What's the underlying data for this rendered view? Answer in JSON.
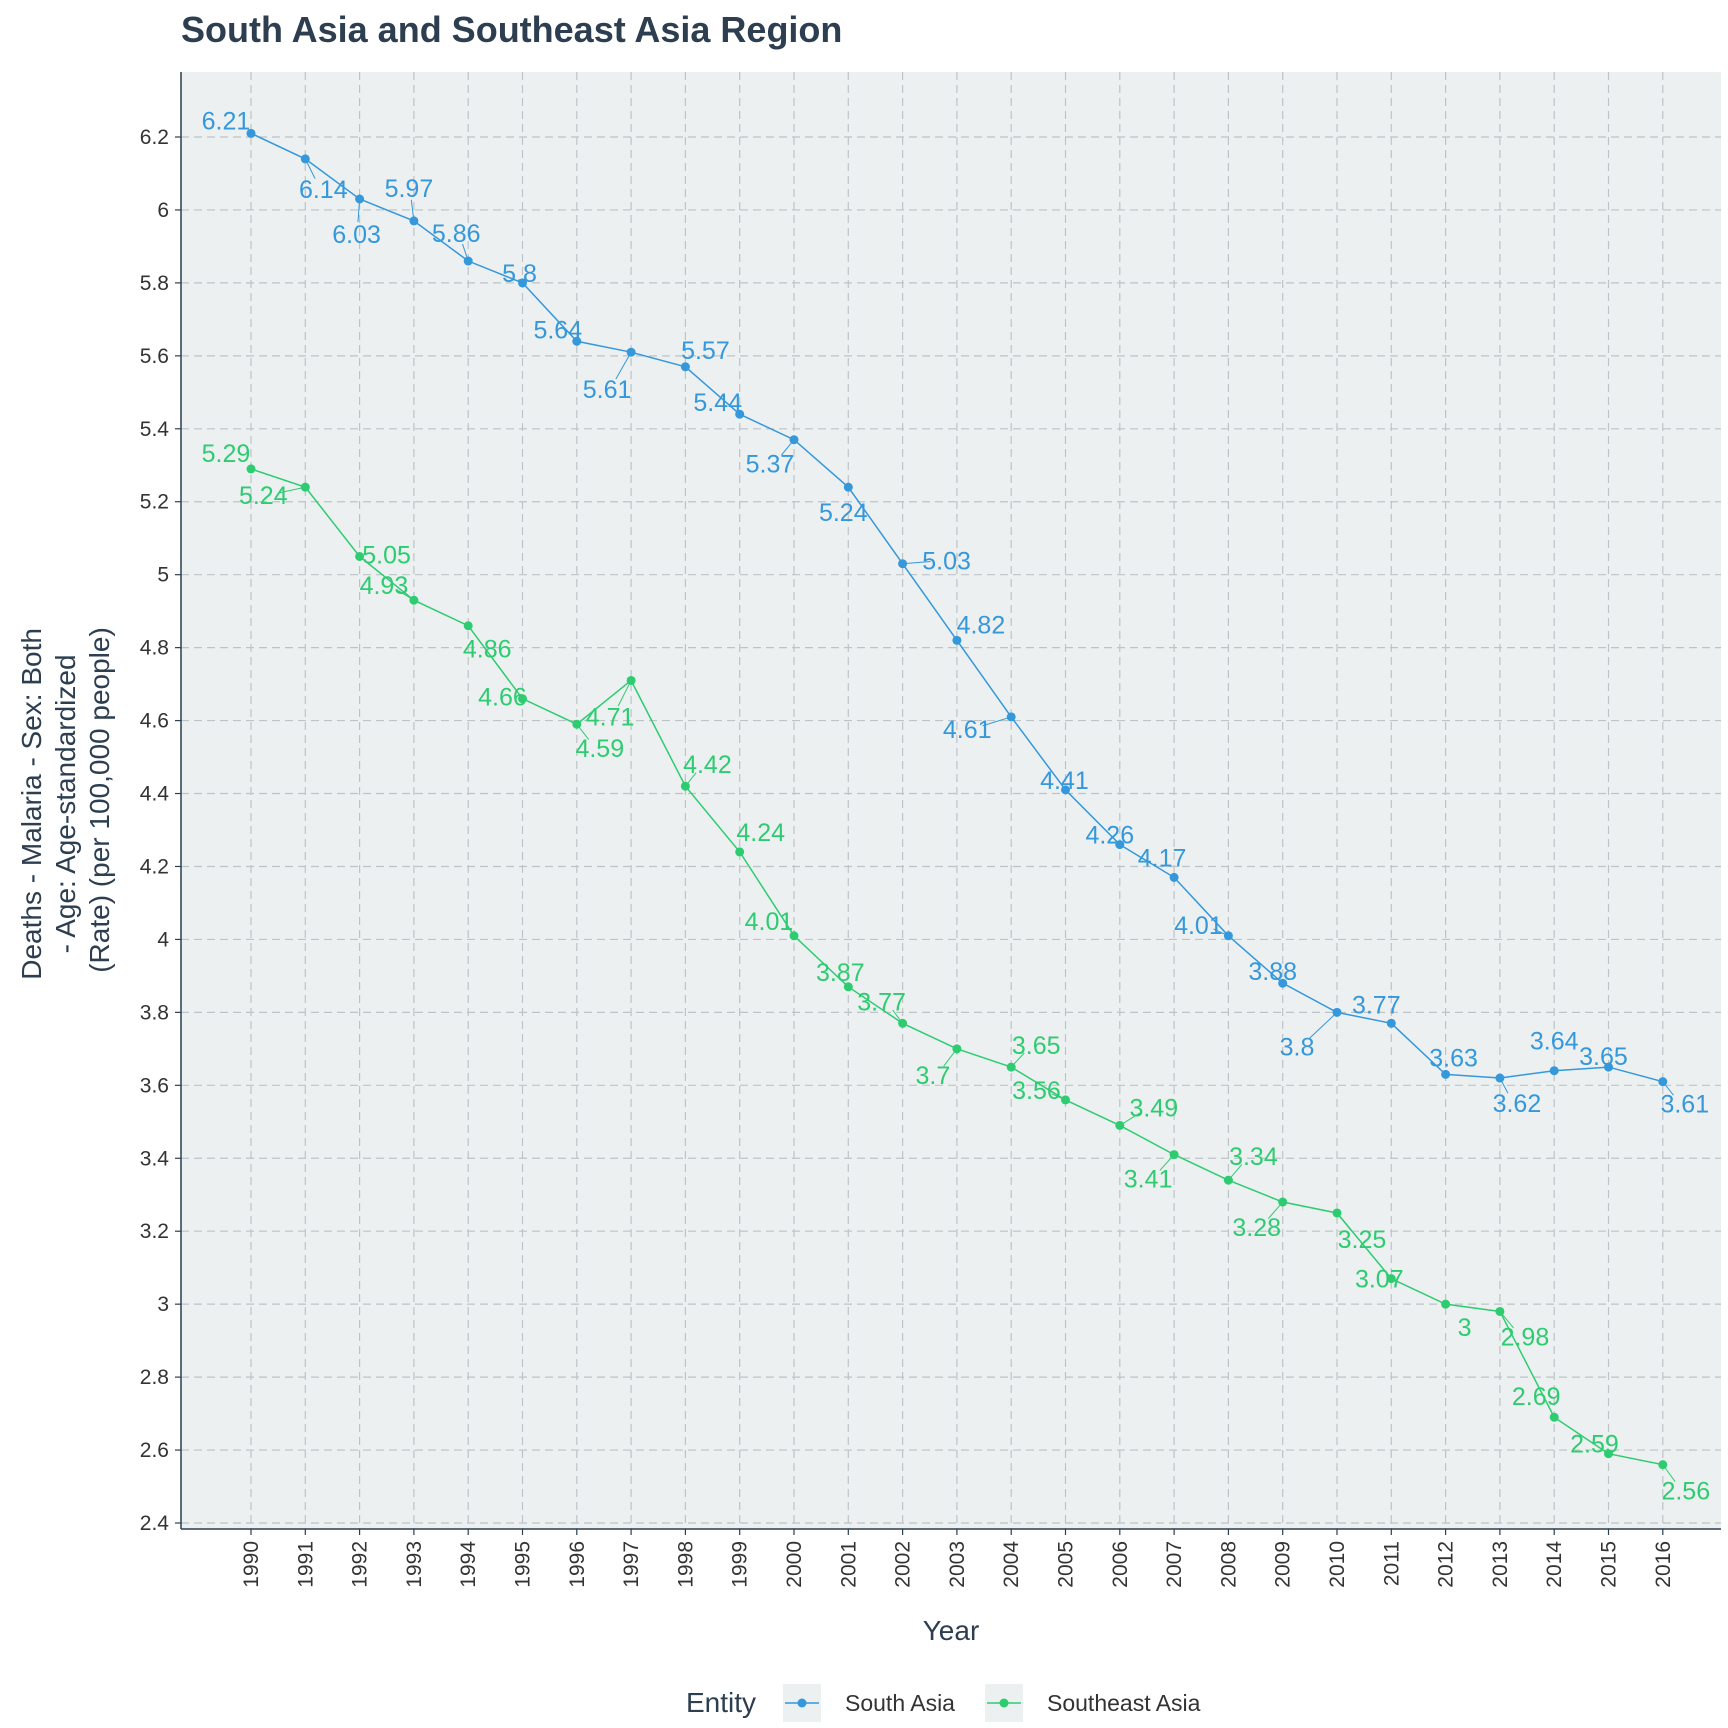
{
  "chart_data": {
    "type": "line",
    "title": "South Asia and Southeast Asia Region",
    "xlabel": "Year",
    "ylabel": [
      "Deaths - Malaria - Sex: Both",
      "- Age: Age-standardized",
      "(Rate) (per 100,000 people)"
    ],
    "x": [
      1990,
      1991,
      1992,
      1993,
      1994,
      1995,
      1996,
      1997,
      1998,
      1999,
      2000,
      2001,
      2002,
      2003,
      2004,
      2005,
      2006,
      2007,
      2008,
      2009,
      2010,
      2011,
      2012,
      2013,
      2014,
      2015,
      2016
    ],
    "x_tick_labels": [
      "1990",
      "1991",
      "1992",
      "1993",
      "1994",
      "1995",
      "1996",
      "1997",
      "1998",
      "1999",
      "2000",
      "2001",
      "2002",
      "2003",
      "2004",
      "2005",
      "2006",
      "2007",
      "2008",
      "2009",
      "2010",
      "2011",
      "2012",
      "2013",
      "2014",
      "2015",
      "2016"
    ],
    "ylim": [
      2.4,
      6.3
    ],
    "y_ticks": [
      2.4,
      2.6,
      2.8,
      3,
      3.2,
      3.4,
      3.6,
      3.8,
      4,
      4.2,
      4.4,
      4.6,
      4.8,
      5,
      5.2,
      5.4,
      5.6,
      5.8,
      6,
      6.2
    ],
    "y_tick_labels": [
      "2.4",
      "2.6",
      "2.8",
      "3",
      "3.2",
      "3.4",
      "3.6",
      "3.8",
      "4",
      "4.2",
      "4.4",
      "4.6",
      "4.8",
      "5",
      "5.2",
      "5.4",
      "5.6",
      "5.8",
      "6",
      "6.2"
    ],
    "grid": true,
    "legend": {
      "title": "Entity",
      "position": "bottom"
    },
    "series": [
      {
        "name": "South Asia",
        "color": "#3498db",
        "values": [
          6.21,
          6.14,
          6.03,
          5.97,
          5.86,
          5.8,
          5.64,
          5.61,
          5.57,
          5.44,
          5.37,
          5.24,
          5.03,
          4.82,
          4.61,
          4.41,
          4.26,
          4.17,
          4.01,
          3.88,
          3.8,
          3.77,
          3.63,
          3.62,
          3.64,
          3.65,
          3.61
        ],
        "labels": [
          "6.21",
          "6.14",
          "6.03",
          "5.97",
          "5.86",
          "5.8",
          "5.64",
          "5.61",
          "5.57",
          "5.44",
          "5.37",
          "5.24",
          "5.03",
          "4.82",
          "4.61",
          "4.41",
          "4.26",
          "4.17",
          "4.01",
          "3.88",
          "3.8",
          "3.77",
          "3.63",
          "3.62",
          "3.64",
          "3.65",
          "3.61"
        ]
      },
      {
        "name": "Southeast Asia",
        "color": "#2ecc71",
        "values": [
          5.29,
          5.24,
          5.05,
          4.93,
          4.86,
          4.66,
          4.59,
          4.71,
          4.42,
          4.24,
          4.01,
          3.87,
          3.77,
          3.7,
          3.65,
          3.56,
          3.49,
          3.41,
          3.34,
          3.28,
          3.25,
          3.07,
          3,
          2.98,
          2.69,
          2.59,
          2.56
        ],
        "labels": [
          "5.29",
          "5.24",
          "5.05",
          "4.93",
          "4.86",
          "4.66",
          "4.59",
          "4.71",
          "4.42",
          "4.24",
          "4.01",
          "3.87",
          "3.77",
          "3.7",
          "3.65",
          "3.56",
          "3.49",
          "3.41",
          "3.34",
          "3.28",
          "3.25",
          "3.07",
          "3",
          "2.98",
          "2.69",
          "2.59",
          "2.56"
        ]
      }
    ]
  }
}
